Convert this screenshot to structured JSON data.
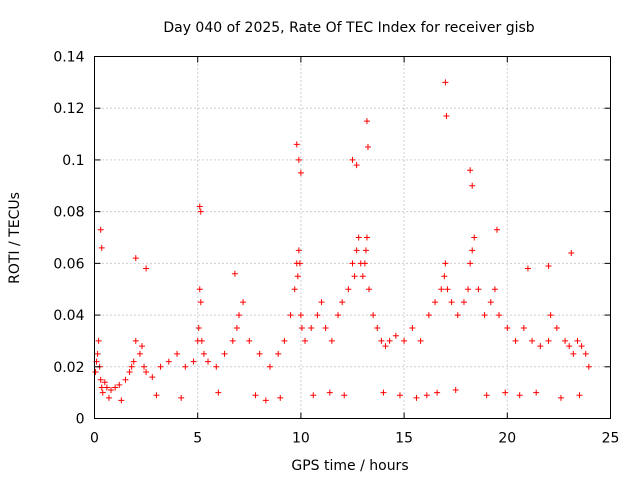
{
  "chart_data": {
    "type": "scatter",
    "title": "Day 040 of 2025, Rate Of TEC Index for receiver gisb",
    "xlabel": "GPS time / hours",
    "ylabel": "ROTI / TECUs",
    "xlim": [
      0,
      25
    ],
    "ylim": [
      0,
      0.14
    ],
    "xticks": [
      0,
      5,
      10,
      15,
      20,
      25
    ],
    "xtick_labels": [
      "0",
      "5",
      "10",
      "15",
      "20",
      "25"
    ],
    "yticks": [
      0,
      0.02,
      0.04,
      0.06,
      0.08,
      0.1,
      0.12,
      0.14
    ],
    "ytick_labels": [
      "0",
      "0.02",
      "0.04",
      "0.06",
      "0.08",
      "0.1",
      "0.12",
      "0.14"
    ],
    "grid": true,
    "marker": "+",
    "color": "#ff0000",
    "series": [
      {
        "name": "ROTI",
        "x": [
          0.05,
          0.1,
          0.15,
          0.2,
          0.25,
          0.3,
          0.35,
          0.4,
          0.5,
          0.6,
          0.8,
          1.0,
          1.2,
          1.5,
          1.7,
          1.8,
          1.9,
          2.0,
          2.2,
          2.3,
          2.4,
          2.5,
          2.8,
          3.2,
          3.6,
          4.0,
          4.4,
          4.8,
          5.0,
          5.05,
          5.1,
          5.15,
          5.2,
          5.3,
          5.5,
          5.9,
          6.3,
          6.7,
          6.9,
          7.0,
          7.2,
          7.5,
          8.0,
          8.5,
          8.9,
          9.2,
          9.5,
          9.7,
          9.8,
          9.85,
          9.9,
          9.95,
          10.0,
          10.05,
          10.2,
          10.5,
          10.8,
          11.0,
          11.2,
          11.5,
          11.8,
          12.0,
          12.3,
          12.5,
          12.6,
          12.7,
          12.8,
          12.9,
          13.0,
          13.1,
          13.15,
          13.2,
          13.3,
          13.5,
          13.7,
          13.9,
          14.1,
          14.3,
          14.6,
          15.0,
          15.4,
          15.8,
          16.2,
          16.5,
          16.8,
          16.95,
          17.0,
          17.1,
          17.3,
          17.6,
          17.9,
          18.1,
          18.2,
          18.3,
          18.4,
          18.6,
          18.9,
          19.2,
          19.4,
          19.6,
          20.0,
          20.4,
          20.8,
          21.2,
          21.6,
          22.0,
          22.1,
          22.4,
          22.8,
          23.0,
          23.2,
          23.4,
          23.6,
          23.8,
          23.95,
          0.3,
          0.35,
          2.0,
          2.5,
          5.1,
          5.15,
          6.8,
          9.8,
          9.9,
          10.0,
          12.5,
          12.7,
          13.2,
          13.25,
          17.0,
          17.05,
          18.2,
          18.3,
          19.5,
          21.0,
          22.0,
          23.1,
          0.7,
          1.3,
          3.0,
          4.2,
          6.0,
          7.8,
          8.3,
          9.0,
          10.6,
          11.4,
          12.1,
          14.0,
          14.8,
          15.6,
          16.1,
          16.6,
          17.5,
          19.0,
          19.9,
          20.6,
          21.4,
          22.6,
          23.5
        ],
        "y": [
          0.018,
          0.022,
          0.025,
          0.03,
          0.02,
          0.015,
          0.012,
          0.01,
          0.014,
          0.012,
          0.011,
          0.012,
          0.013,
          0.015,
          0.018,
          0.02,
          0.022,
          0.03,
          0.025,
          0.028,
          0.02,
          0.018,
          0.016,
          0.02,
          0.022,
          0.025,
          0.02,
          0.022,
          0.03,
          0.035,
          0.05,
          0.045,
          0.03,
          0.025,
          0.022,
          0.02,
          0.025,
          0.03,
          0.035,
          0.04,
          0.045,
          0.03,
          0.025,
          0.02,
          0.025,
          0.03,
          0.04,
          0.05,
          0.06,
          0.055,
          0.065,
          0.06,
          0.04,
          0.035,
          0.03,
          0.035,
          0.04,
          0.045,
          0.035,
          0.03,
          0.04,
          0.045,
          0.05,
          0.06,
          0.055,
          0.065,
          0.07,
          0.06,
          0.055,
          0.06,
          0.065,
          0.07,
          0.05,
          0.04,
          0.035,
          0.03,
          0.028,
          0.03,
          0.032,
          0.03,
          0.035,
          0.03,
          0.04,
          0.045,
          0.05,
          0.055,
          0.06,
          0.05,
          0.045,
          0.04,
          0.045,
          0.05,
          0.06,
          0.065,
          0.07,
          0.05,
          0.04,
          0.045,
          0.05,
          0.04,
          0.035,
          0.03,
          0.035,
          0.03,
          0.028,
          0.03,
          0.04,
          0.035,
          0.03,
          0.028,
          0.025,
          0.03,
          0.028,
          0.025,
          0.02,
          0.073,
          0.066,
          0.062,
          0.058,
          0.082,
          0.08,
          0.056,
          0.106,
          0.1,
          0.095,
          0.1,
          0.098,
          0.115,
          0.105,
          0.13,
          0.117,
          0.096,
          0.09,
          0.073,
          0.058,
          0.059,
          0.064,
          0.008,
          0.007,
          0.009,
          0.008,
          0.01,
          0.009,
          0.007,
          0.008,
          0.009,
          0.01,
          0.009,
          0.01,
          0.009,
          0.008,
          0.009,
          0.01,
          0.011,
          0.009,
          0.01,
          0.009,
          0.01,
          0.008,
          0.009
        ]
      }
    ]
  }
}
